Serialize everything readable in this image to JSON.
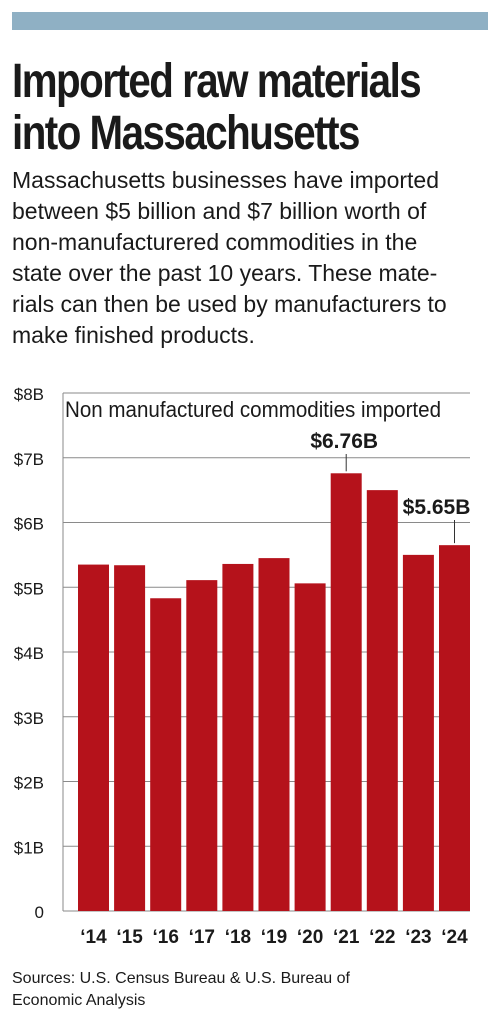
{
  "header": {
    "title_lines": [
      "Imported raw materials",
      "into Massachusetts"
    ],
    "description_lines": [
      "Massachusetts businesses have imported",
      "between $5 billion and $7 billion worth of",
      "non-manufacturered commodities in the",
      "state over the past 10 years. These mate-",
      "rials can then be used by manufacturers to",
      "make finished products."
    ]
  },
  "colors": {
    "bar": "#b5121b",
    "grid": "#8a8a8a",
    "accent_bar": "#8fb0c4"
  },
  "chart_data": {
    "type": "bar",
    "title": "Non manufactured commodities imported",
    "categories": [
      "‘14",
      "‘15",
      "‘16",
      "‘17",
      "‘18",
      "‘19",
      "‘20",
      "‘21",
      "‘22",
      "‘23",
      "‘24"
    ],
    "values": [
      5.35,
      5.34,
      4.83,
      5.11,
      5.36,
      5.45,
      5.06,
      6.76,
      6.5,
      5.5,
      5.65
    ],
    "unit": "billions USD",
    "ylim": [
      0,
      8
    ],
    "yticks": [
      0,
      1,
      2,
      3,
      4,
      5,
      6,
      7,
      8
    ],
    "ytick_labels": [
      "0",
      "$1B",
      "$2B",
      "$3B",
      "$4B",
      "$5B",
      "$6B",
      "$7B",
      "$8B"
    ],
    "grid": true,
    "annotations": [
      {
        "category_index": 7,
        "text": "$6.76B"
      },
      {
        "category_index": 10,
        "text": "$5.65B"
      }
    ]
  },
  "footer": {
    "source_lines": [
      "Sources: U.S. Census Bureau & U.S. Bureau of",
      "Economic Analysis"
    ]
  }
}
